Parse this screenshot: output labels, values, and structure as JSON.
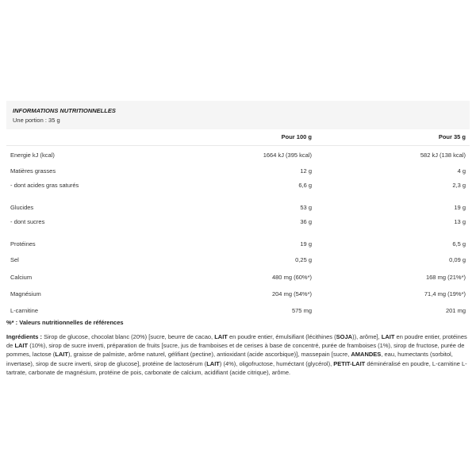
{
  "header": {
    "title": "INFORMATIONS NUTRITIONNELLES",
    "portion": "Une portion : 35 g"
  },
  "columns": [
    "",
    "Pour 100 g",
    "Pour 35 g"
  ],
  "rows": [
    {
      "label": "Energie kJ (kcal)",
      "per100": "1664 kJ (395 kcal)",
      "perPortion": "582 kJ (138 kcal)"
    },
    {
      "label": "Matières grasses",
      "per100": "12 g",
      "perPortion": "4 g"
    },
    {
      "label": "- dont acides gras saturés",
      "per100": "6,6 g",
      "perPortion": "2,3 g"
    },
    {
      "label": "Glucides",
      "per100": "53 g",
      "perPortion": "19 g"
    },
    {
      "label": "- dont sucres",
      "per100": "36 g",
      "perPortion": "13 g"
    },
    {
      "label": "Protéines",
      "per100": "19 g",
      "perPortion": "6,5 g"
    },
    {
      "label": "Sel",
      "per100": "0,25 g",
      "perPortion": "0,09 g"
    },
    {
      "label": "Calcium",
      "per100": "480 mg (60%*)",
      "perPortion": "168 mg (21%*)"
    },
    {
      "label": "Magnésium",
      "per100": "204 mg (54%*)",
      "perPortion": "71,4 mg (19%*)"
    },
    {
      "label": "L-carnitine",
      "per100": "575 mg",
      "perPortion": "201 mg"
    }
  ],
  "footnote": "%* : Valeurs nutritionnelles de références",
  "ingredients": [
    {
      "text": "Ingrédients : ",
      "bold": true
    },
    {
      "text": "Sirop de glucose, chocolat blanc (20%) [sucre, beurre de cacao, ",
      "bold": false
    },
    {
      "text": "LAIT",
      "bold": true
    },
    {
      "text": " en poudre entier, émulsifiant (lécithines (",
      "bold": false
    },
    {
      "text": "SOJA",
      "bold": true
    },
    {
      "text": ")), arôme], ",
      "bold": false
    },
    {
      "text": "LAIT",
      "bold": true
    },
    {
      "text": " en poudre entier, protéines de ",
      "bold": false
    },
    {
      "text": "LAIT",
      "bold": true
    },
    {
      "text": " (10%), sirop de sucre inverti, préparation de fruits [sucre, jus de framboises et de cerises à base de concentré, purée de framboises (1%), sirop de fructose, purée de pommes, lactose (",
      "bold": false
    },
    {
      "text": "LAIT",
      "bold": true
    },
    {
      "text": "), graisse de palmiste, arôme naturel, gélifiant (pectine), antioxidant (acide ascorbique)], massepain [sucre, ",
      "bold": false
    },
    {
      "text": "AMANDES",
      "bold": true
    },
    {
      "text": ", eau, humectants (sorbitol, invertase), sirop de sucre inverti, sirop de glucose], protéine de lactosérum (",
      "bold": false
    },
    {
      "text": "LAIT",
      "bold": true
    },
    {
      "text": ") (4%), oligofructose, huméctant (glycérol), ",
      "bold": false
    },
    {
      "text": "PETIT-LAIT",
      "bold": true
    },
    {
      "text": " déminéralisé en poudre, L-carnitine L-tartrate, carbonate de magnésium, protéine de pois, carbonate de calcium, acidifiant (acide citrique), arôme.",
      "bold": false
    }
  ]
}
